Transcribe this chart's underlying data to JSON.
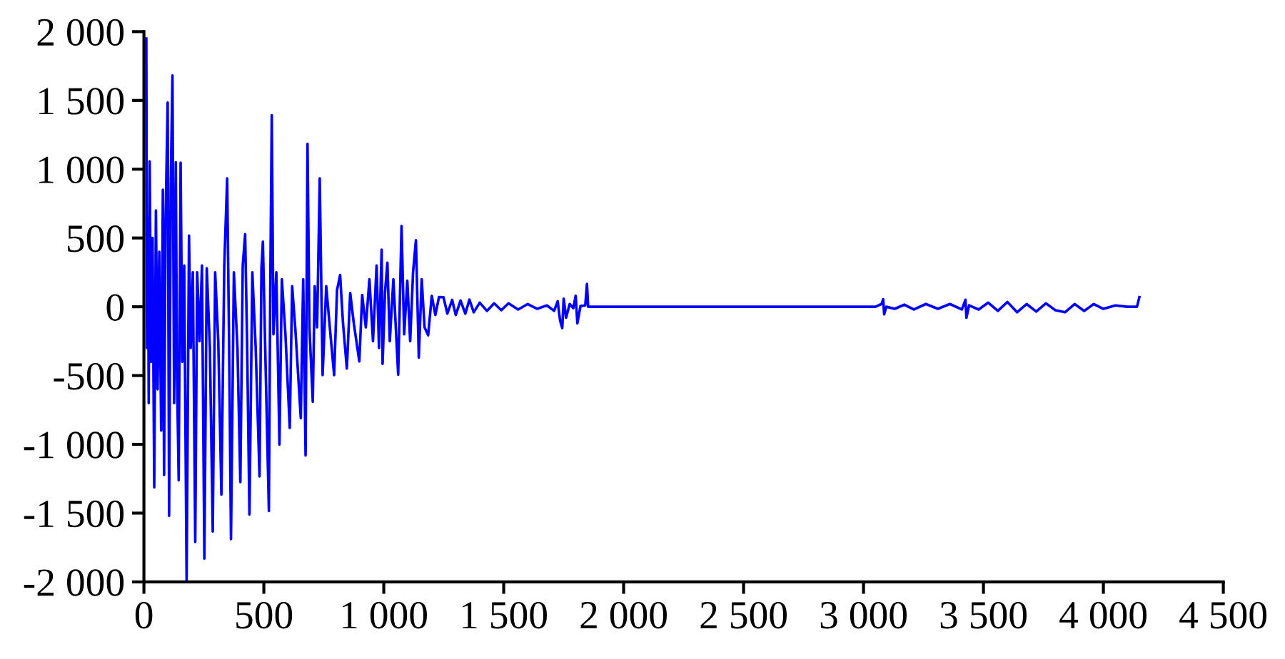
{
  "chart_data": {
    "type": "line",
    "grid": false,
    "marker": "none",
    "line_style": "solid",
    "xlim": [
      0,
      4500
    ],
    "ylim": [
      -2000,
      2000
    ],
    "xticks": [
      0,
      500,
      {
        "value": 1000,
        "label": "1 000"
      },
      {
        "value": 1500,
        "label": "1 500"
      },
      {
        "value": 2000,
        "label": "2 000"
      },
      {
        "value": 2500,
        "label": "2 500"
      },
      {
        "value": 3000,
        "label": "3 000"
      },
      {
        "value": 3500,
        "label": "3 500"
      },
      {
        "value": 4000,
        "label": "4 000"
      },
      {
        "value": 4500,
        "label": "4 500"
      }
    ],
    "yticks": [
      {
        "value": -2000,
        "label": "-2 000"
      },
      {
        "value": -1500,
        "label": "-1 500"
      },
      {
        "value": -1000,
        "label": "-1 000"
      },
      -500,
      0,
      500,
      {
        "value": 1000,
        "label": "1 000"
      },
      {
        "value": 1500,
        "label": "1 500"
      },
      {
        "value": 2000,
        "label": "2 000"
      }
    ],
    "series": [
      {
        "color": "#0000ff",
        "x": [
          10,
          13,
          17,
          20,
          24,
          30,
          36,
          43,
          50,
          57,
          64,
          72,
          79,
          84,
          90,
          99,
          105,
          112,
          119,
          126,
          133,
          138,
          145,
          153,
          160,
          168,
          178,
          188,
          195,
          204,
          214,
          222,
          232,
          242,
          252,
          262,
          275,
          287,
          297,
          310,
          323,
          335,
          347,
          355,
          363,
          375,
          390,
          402,
          412,
          422,
          430,
          440,
          452,
          466,
          482,
          490,
          496,
          505,
          521,
          527,
          533,
          540,
          552,
          565,
          575,
          590,
          608,
          618,
          632,
          654,
          664,
          674,
          682,
          690,
          704,
          712,
          722,
          733,
          745,
          760,
          775,
          793,
          805,
          818,
          830,
          846,
          860,
          875,
          898,
          910,
          925,
          940,
          955,
          970,
          980,
          991,
          995,
          1005,
          1015,
          1025,
          1040,
          1060,
          1074,
          1085,
          1098,
          1110,
          1122,
          1134,
          1146,
          1158,
          1170,
          1185,
          1200,
          1215,
          1230,
          1249,
          1265,
          1285,
          1300,
          1320,
          1340,
          1357,
          1375,
          1400,
          1430,
          1460,
          1490,
          1520,
          1560,
          1600,
          1640,
          1680,
          1710,
          1725,
          1735,
          1744,
          1750,
          1760,
          1775,
          1790,
          1800,
          1807,
          1820,
          1840,
          1847,
          1852,
          1900,
          3050,
          3075,
          3082,
          3086,
          3095,
          3130,
          3170,
          3210,
          3260,
          3310,
          3360,
          3410,
          3425,
          3429,
          3440,
          3480,
          3520,
          3560,
          3600,
          3640,
          3680,
          3720,
          3760,
          3800,
          3840,
          3880,
          3920,
          3960,
          4000,
          4050,
          4100,
          4140,
          4150
        ],
        "values": [
          1950,
          -300,
          650,
          -700,
          1057,
          -400,
          500,
          -1313,
          700,
          -600,
          400,
          -900,
          850,
          -1223,
          600,
          1485,
          -1520,
          900,
          1682,
          -700,
          1050,
          -500,
          -1261,
          1047,
          -400,
          300,
          -1986,
          518,
          -300,
          250,
          -1710,
          250,
          -250,
          300,
          -1831,
          280,
          -300,
          -1634,
          250,
          -250,
          -1365,
          300,
          933,
          -250,
          -1689,
          250,
          -300,
          -1275,
          300,
          528,
          -250,
          -1510,
          250,
          -300,
          -1233,
          280,
          473,
          -250,
          -1485,
          200,
          1392,
          -200,
          250,
          -1002,
          200,
          -200,
          -881,
          150,
          -180,
          -810,
          200,
          -1081,
          1185,
          -150,
          -691,
          150,
          -150,
          933,
          -497,
          150,
          -150,
          -497,
          120,
          231,
          -120,
          -449,
          100,
          -120,
          -397,
          86,
          -150,
          200,
          -250,
          300,
          -300,
          415,
          -415,
          100,
          321,
          -250,
          200,
          -494,
          587,
          -200,
          190,
          -250,
          250,
          484,
          -370,
          200,
          -150,
          -207,
          80,
          -60,
          70,
          69,
          -50,
          50,
          -60,
          45,
          -50,
          52,
          -40,
          30,
          -30,
          25,
          -25,
          25,
          -20,
          20,
          -15,
          10,
          -30,
          40,
          -100,
          -155,
          59,
          -80,
          20,
          -10,
          80,
          -121,
          5,
          10,
          166,
          0,
          0,
          0,
          20,
          55,
          -55,
          0,
          -15,
          15,
          -20,
          20,
          -15,
          20,
          -20,
          50,
          -80,
          10,
          -20,
          30,
          -30,
          35,
          -40,
          20,
          -35,
          25,
          -25,
          -40,
          20,
          -30,
          20,
          -15,
          10,
          0,
          0,
          70
        ]
      }
    ]
  }
}
